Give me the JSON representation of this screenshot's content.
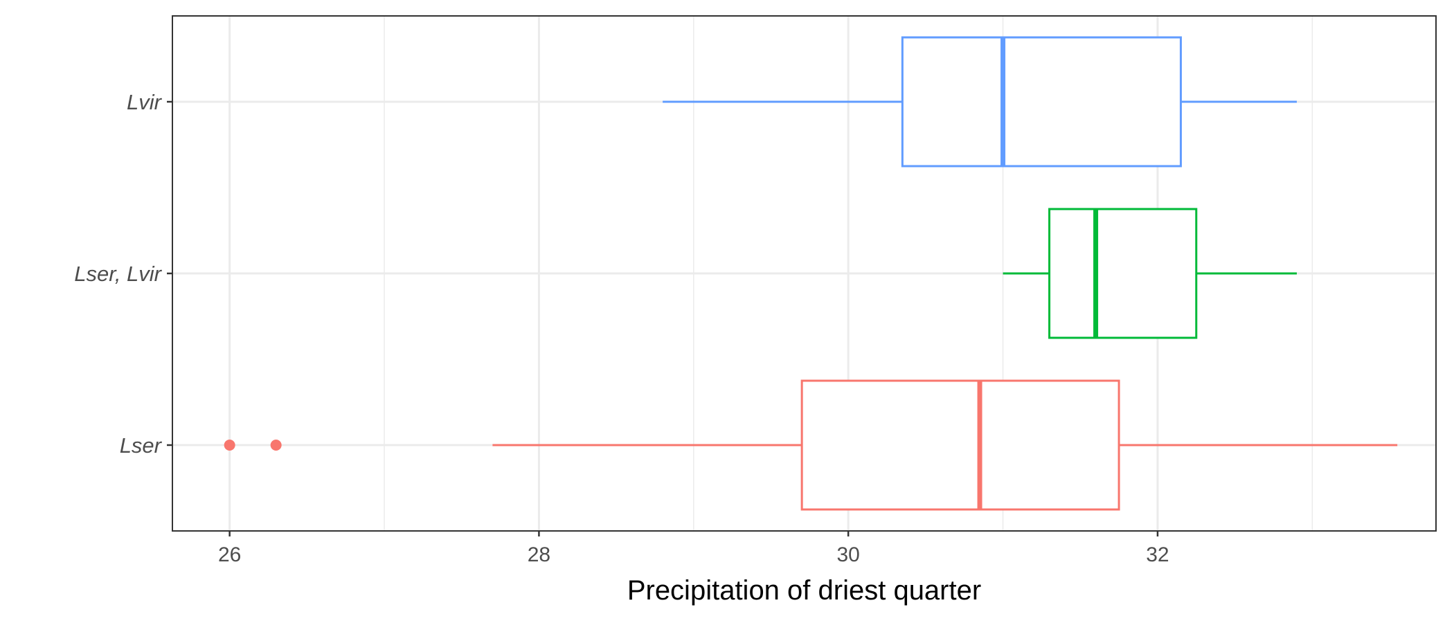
{
  "chart_data": {
    "type": "boxplot",
    "title": "",
    "xlabel": "Precipitation of driest quarter",
    "ylabel": "",
    "xlim": [
      25.63,
      33.8
    ],
    "xticks": [
      26,
      28,
      30,
      32
    ],
    "grid": true,
    "legend": "none",
    "categories": [
      "Lser",
      "Lser, Lvir",
      "Lvir"
    ],
    "boxes": [
      {
        "category": "Lser",
        "color": "#F8766D",
        "whisker_low": 27.7,
        "q1": 29.7,
        "median": 30.85,
        "q3": 31.75,
        "whisker_high": 33.55,
        "outliers": [
          26.0,
          26.3
        ]
      },
      {
        "category": "Lser, Lvir",
        "color": "#00BA38",
        "whisker_low": 31.0,
        "q1": 31.3,
        "median": 31.6,
        "q3": 32.25,
        "whisker_high": 32.9,
        "outliers": []
      },
      {
        "category": "Lvir",
        "color": "#619CFF",
        "whisker_low": 28.8,
        "q1": 30.35,
        "median": 31.0,
        "q3": 32.15,
        "whisker_high": 32.9,
        "outliers": []
      }
    ]
  }
}
